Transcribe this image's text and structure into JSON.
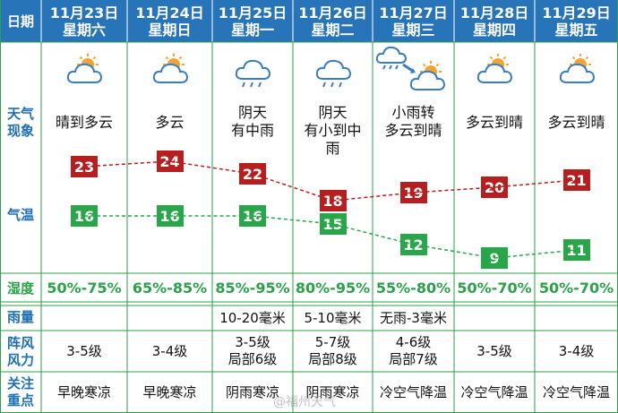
{
  "header_label": "日期",
  "days": [
    {
      "date": "11月23日",
      "weekday": "星期六",
      "icon": "partly-cloudy-icon",
      "condition": [
        "晴到多云"
      ],
      "high": 23,
      "low": 16,
      "humidity": "50%-75%",
      "rain": "",
      "wind": [
        "3-5级"
      ],
      "note": "早晚寒凉"
    },
    {
      "date": "11月24日",
      "weekday": "星期日",
      "icon": "partly-cloudy-icon",
      "condition": [
        "多云"
      ],
      "high": 24,
      "low": 16,
      "humidity": "65%-85%",
      "rain": "",
      "wind": [
        "3-4级"
      ],
      "note": "早晚寒凉"
    },
    {
      "date": "11月25日",
      "weekday": "星期一",
      "icon": "rain-cloud-icon",
      "condition": [
        "阴天",
        "有中雨"
      ],
      "high": 22,
      "low": 16,
      "humidity": "85%-95%",
      "rain": "10-20毫米",
      "wind": [
        "3-5级",
        "局部6级"
      ],
      "note": "阴雨寒凉"
    },
    {
      "date": "11月26日",
      "weekday": "星期二",
      "icon": "rain-cloud-icon",
      "condition": [
        "阴天",
        "有小到中",
        "雨"
      ],
      "high": 18,
      "low": 15,
      "humidity": "80%-95%",
      "rain": "5-10毫米",
      "wind": [
        "5-7级",
        "局部8级"
      ],
      "note": "阴雨寒凉"
    },
    {
      "date": "11月27日",
      "weekday": "星期三",
      "icon": "rain-to-cloudy-icon",
      "condition": [
        "小雨转",
        "多云到晴"
      ],
      "high": 19,
      "low": 12,
      "humidity": "55%-80%",
      "rain": "无雨-3毫米",
      "wind": [
        "4-6级",
        "局部7级"
      ],
      "note": "冷空气降温"
    },
    {
      "date": "11月28日",
      "weekday": "星期四",
      "icon": "partly-cloudy-icon",
      "condition": [
        "多云到晴"
      ],
      "high": 20,
      "low": 9,
      "humidity": "50%-70%",
      "rain": "",
      "wind": [
        "3-5级"
      ],
      "note": "冷空气降温"
    },
    {
      "date": "11月29日",
      "weekday": "星期五",
      "icon": "partly-cloudy-icon",
      "condition": [
        "多云到晴"
      ],
      "high": 21,
      "low": 11,
      "humidity": "50%-70%",
      "rain": "",
      "wind": [
        "3-4级"
      ],
      "note": "冷空气降温"
    }
  ],
  "row_labels": {
    "weather": [
      "天气",
      "现象"
    ],
    "temperature": "气温",
    "humidity": "湿度",
    "rain": "雨量",
    "wind": [
      "阵风",
      "风力"
    ],
    "note": [
      "关注",
      "重点"
    ]
  },
  "colors": {
    "header": "#2874b8",
    "high": "#b51f1f",
    "low": "#29a64a",
    "humidity": "#2aa14a",
    "label": "#1f6fb5",
    "grid": "#2aa14a"
  },
  "watermark": "@福州天气"
}
